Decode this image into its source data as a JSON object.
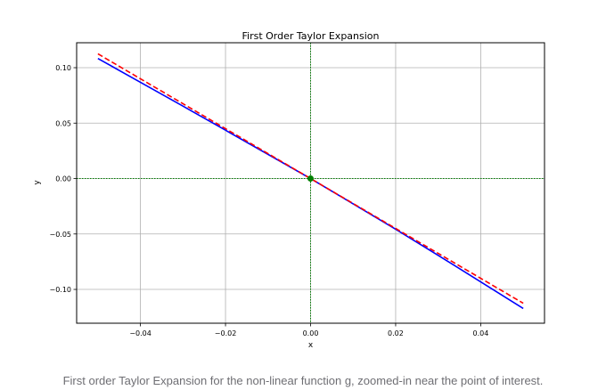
{
  "caption": "First order Taylor Expansion for the non-linear function g, zoomed-in near the point of interest.",
  "chart_data": {
    "type": "line",
    "title": "First Order Taylor Expansion",
    "xlabel": "x",
    "ylabel": "y",
    "xlim": [
      -0.055,
      0.055
    ],
    "ylim": [
      -0.1305,
      0.1225
    ],
    "grid": true,
    "legend": "none",
    "xticks": [
      -0.04,
      -0.02,
      0.0,
      0.02,
      0.04
    ],
    "xtick_labels": [
      "−0.04",
      "−0.02",
      "0.00",
      "0.02",
      "0.04"
    ],
    "yticks": [
      0.1,
      0.05,
      0.0,
      -0.05,
      -0.1
    ],
    "ytick_labels": [
      "0.10",
      "0.05",
      "0.00",
      "−0.05",
      "−0.10"
    ],
    "series": [
      {
        "style": "solid",
        "color": "#0000ff",
        "x": [
          -0.05,
          -0.04,
          -0.03,
          -0.02,
          -0.01,
          0.0,
          0.01,
          0.02,
          0.03,
          0.04,
          0.05
        ],
        "y": [
          0.1083,
          0.0868,
          0.0653,
          0.0436,
          0.0218,
          0.0,
          -0.0228,
          -0.0457,
          -0.0693,
          -0.0932,
          -0.1172
        ]
      },
      {
        "style": "dashed",
        "color": "#ff0000",
        "x": [
          -0.05,
          0.05
        ],
        "y": [
          0.1125,
          -0.1125
        ]
      }
    ],
    "reference_lines": [
      {
        "orientation": "horizontal",
        "value": 0.0,
        "color": "#008000",
        "style": "dotted"
      },
      {
        "orientation": "vertical",
        "value": 0.0,
        "color": "#008000",
        "style": "dotted"
      }
    ],
    "point": {
      "x": 0.0,
      "y": 0.0,
      "color": "#008000"
    }
  }
}
